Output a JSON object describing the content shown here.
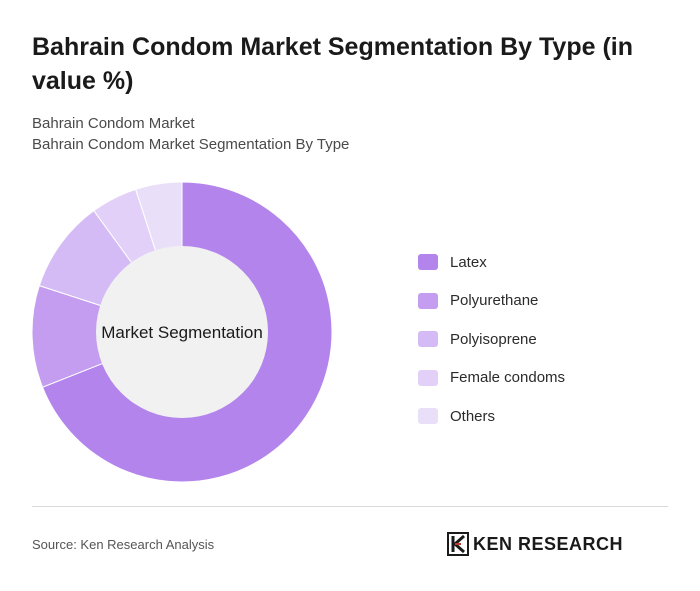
{
  "header": {
    "title": "Bahrain Condom Market Segmentation By Type (in value %)",
    "breadcrumb_1": "Bahrain Condom Market",
    "breadcrumb_2": "Bahrain Condom Market Segmentation By Type"
  },
  "chart_data": {
    "type": "pie",
    "variant": "donut",
    "center_label": "Market Segmentation",
    "categories": [
      "Latex",
      "Polyurethane",
      "Polyisoprene",
      "Female condoms",
      "Others"
    ],
    "values": [
      69,
      11,
      10,
      5,
      5
    ],
    "colors": [
      "#b384ec",
      "#c49cf0",
      "#d5bbf5",
      "#e2d0f8",
      "#eadff9"
    ],
    "legend_position": "right",
    "start_angle": "top, clockwise"
  },
  "footer": {
    "source": "Source: Ken Research Analysis",
    "brand": "KEN RESEARCH"
  }
}
